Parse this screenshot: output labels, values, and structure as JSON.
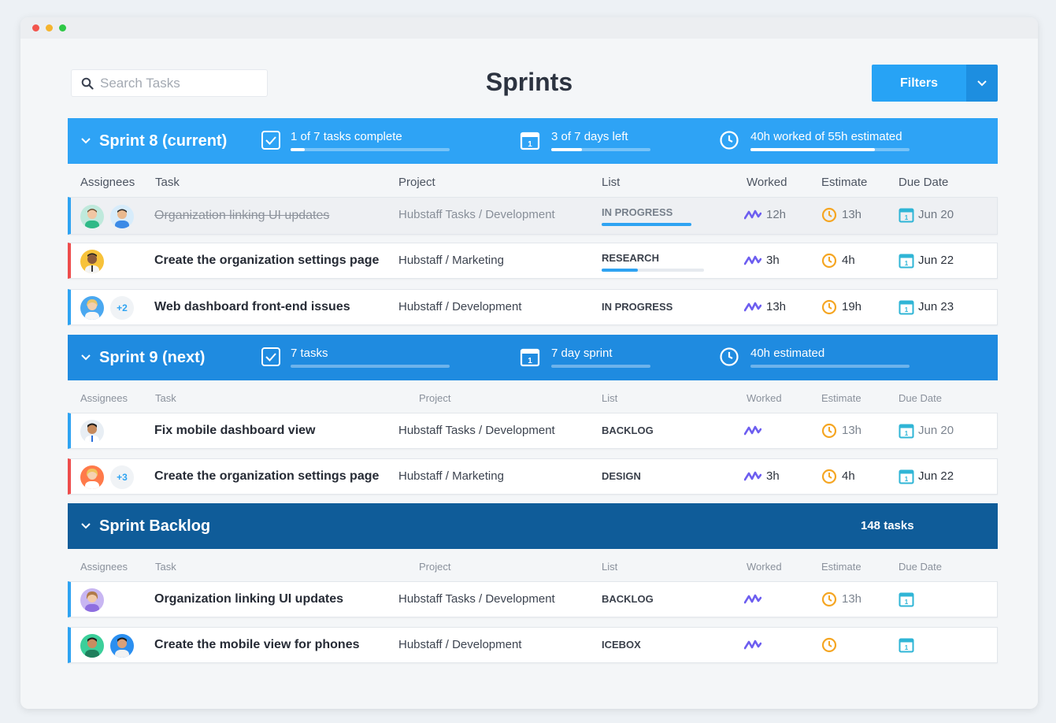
{
  "search": {
    "placeholder": "Search Tasks"
  },
  "page_title": "Sprints",
  "filters": {
    "label": "Filters"
  },
  "columns": {
    "assignees": "Assignees",
    "task": "Task",
    "project": "Project",
    "list": "List",
    "worked": "Worked",
    "estimate": "Estimate",
    "due": "Due Date"
  },
  "colors": {
    "sprint8": "#2ea3f5",
    "sprint9": "#1f8be0",
    "backlog": "#0f5c99",
    "accent_blue": "#2ea3f2",
    "accent_red": "#ee4d4d",
    "estimate_orange": "#f5a623",
    "worked_purple": "#6d5ef0",
    "due_teal": "#2fb5d6"
  },
  "sprint8": {
    "name": "Sprint 8 (current)",
    "tasks_text": "1 of 7 tasks complete",
    "tasks_progress": 0.14,
    "days_text": "3 of 7 days left",
    "days_progress": 0.43,
    "hours_text": "40h worked of 55h estimated",
    "hours_progress": 0.73,
    "rows": [
      {
        "task": "Organization linking UI updates",
        "project": "Hubstaff Tasks / Development",
        "list": "IN PROGRESS",
        "list_progress": 0.87,
        "worked": "12h",
        "estimate": "13h",
        "due": "Jun 20",
        "avatars": [
          "avatar-green-shirt",
          "avatar-blue-shirt"
        ],
        "extra": ""
      },
      {
        "task": "Create the organization settings page",
        "project": "Hubstaff / Marketing",
        "list": "RESEARCH",
        "list_progress": 0.35,
        "worked": "3h",
        "estimate": "4h",
        "due": "Jun 22",
        "avatars": [
          "avatar-yellow-bg"
        ],
        "extra": ""
      },
      {
        "task": "Web dashboard front-end issues",
        "project": "Hubstaff / Development",
        "list": "IN PROGRESS",
        "list_progress": 0,
        "worked": "13h",
        "estimate": "19h",
        "due": "Jun 23",
        "avatars": [
          "avatar-blue-bg"
        ],
        "extra": "+2"
      }
    ]
  },
  "sprint9": {
    "name": "Sprint 9 (next)",
    "tasks_text": "7 tasks",
    "days_text": "7 day sprint",
    "hours_text": "40h estimated",
    "rows": [
      {
        "task": "Fix mobile dashboard view",
        "project": "Hubstaff Tasks / Development",
        "list": "BACKLOG",
        "worked": "",
        "estimate": "13h",
        "due": "Jun 20",
        "extra": ""
      },
      {
        "task": "Create the organization settings page",
        "project": "Hubstaff / Marketing",
        "list": "DESIGN",
        "worked": "3h",
        "estimate": "4h",
        "due": "Jun 22",
        "extra": "+3"
      }
    ]
  },
  "backlog": {
    "name": "Sprint Backlog",
    "count_text": "148 tasks",
    "rows": [
      {
        "task": "Organization linking UI updates",
        "project": "Hubstaff Tasks / Development",
        "list": "BACKLOG",
        "worked": "",
        "estimate": "13h",
        "due": ""
      },
      {
        "task": "Create the mobile view for phones",
        "project": "Hubstaff / Development",
        "list": "ICEBOX",
        "worked": "",
        "estimate": "",
        "due": ""
      }
    ]
  }
}
